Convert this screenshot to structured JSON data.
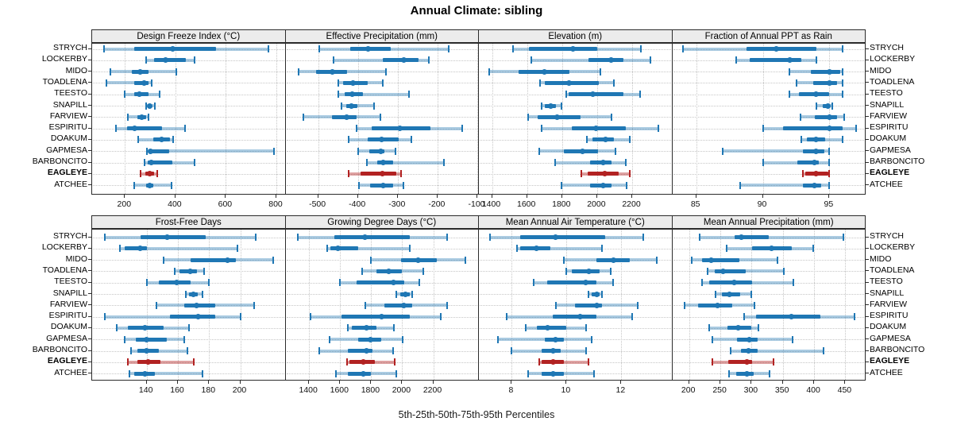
{
  "title": "Annual Climate: sibling",
  "caption": "5th-25th-50th-75th-95th Percentiles",
  "colors": {
    "series_blue": "#1f77b4",
    "series_blue_light": "rgba(31,119,180,0.38)",
    "highlight_red": "#b22222",
    "highlight_red_light": "rgba(178,34,34,0.42)",
    "header_bg": "#ececec",
    "gridline": "#c6c6c6",
    "border": "#2b2b2b"
  },
  "sites": [
    {
      "name": "STRYCH",
      "highlight": false
    },
    {
      "name": "LOCKERBY",
      "highlight": false
    },
    {
      "name": "MIDO",
      "highlight": false
    },
    {
      "name": "TOADLENA",
      "highlight": false
    },
    {
      "name": "TEESTO",
      "highlight": false
    },
    {
      "name": "SNAPILL",
      "highlight": false
    },
    {
      "name": "FARVIEW",
      "highlight": false
    },
    {
      "name": "ESPIRITU",
      "highlight": false
    },
    {
      "name": "DOAKUM",
      "highlight": false
    },
    {
      "name": "GAPMESA",
      "highlight": false
    },
    {
      "name": "BARBONCITO",
      "highlight": false
    },
    {
      "name": "EAGLEYE",
      "highlight": true
    },
    {
      "name": "ATCHEE",
      "highlight": false
    }
  ],
  "chart_data": {
    "type": "scatter",
    "subtype": "percentile-interval-dotplot",
    "grid": "dotted",
    "percentile_levels": [
      5,
      25,
      50,
      75,
      95
    ],
    "panels": [
      {
        "title": "Design Freeze Index (°C)",
        "range": [
          70,
          830
        ],
        "ticks": [
          200,
          400,
          600,
          800
        ],
        "values": [
          [
            117,
            238,
            390,
            560,
            770
          ],
          [
            285,
            315,
            362,
            442,
            475
          ],
          [
            143,
            228,
            259,
            294,
            403
          ],
          [
            127,
            238,
            275,
            295,
            305
          ],
          [
            200,
            238,
            256,
            294,
            338
          ],
          [
            285,
            292,
            299,
            306,
            317
          ],
          [
            210,
            249,
            267,
            283,
            294
          ],
          [
            164,
            207,
            238,
            348,
            437
          ],
          [
            252,
            312,
            346,
            379,
            390
          ],
          [
            288,
            293,
            301,
            374,
            789
          ],
          [
            278,
            291,
            304,
            388,
            475
          ],
          [
            263,
            280,
            299,
            315,
            327
          ],
          [
            238,
            285,
            299,
            312,
            384
          ]
        ]
      },
      {
        "title": "Effective Precipitation (mm)",
        "range": [
          -582,
          -100
        ],
        "ticks": [
          -500,
          -400,
          -300,
          -200,
          -100
        ],
        "values": [
          [
            -497,
            -420,
            -375,
            -318,
            -171
          ],
          [
            -462,
            -337,
            -285,
            -247,
            -221
          ],
          [
            -549,
            -506,
            -465,
            -427,
            -330
          ],
          [
            -450,
            -438,
            -412,
            -375,
            -337
          ],
          [
            -449,
            -434,
            -415,
            -388,
            -272
          ],
          [
            -442,
            -429,
            -417,
            -401,
            -359
          ],
          [
            -538,
            -465,
            -429,
            -404,
            -343
          ],
          [
            -404,
            -366,
            -295,
            -218,
            -138
          ],
          [
            -423,
            -375,
            -340,
            -298,
            -266
          ],
          [
            -400,
            -372,
            -342,
            -333,
            -305
          ],
          [
            -378,
            -352,
            -337,
            -311,
            -183
          ],
          [
            -424,
            -394,
            -338,
            -303,
            -292
          ],
          [
            -397,
            -369,
            -337,
            -311,
            -285
          ]
        ]
      },
      {
        "title": "Elevation (m)",
        "range": [
          1325,
          2420
        ],
        "ticks": [
          1400,
          1600,
          1800,
          2000,
          2200
        ],
        "values": [
          [
            1520,
            1610,
            1860,
            2000,
            2250
          ],
          [
            1625,
            1950,
            2080,
            2150,
            2305
          ],
          [
            1385,
            1550,
            1700,
            1840,
            2020
          ],
          [
            1675,
            1700,
            1840,
            2010,
            2095
          ],
          [
            1825,
            1835,
            1975,
            2150,
            2245
          ],
          [
            1685,
            1700,
            1735,
            1765,
            1795
          ],
          [
            1605,
            1660,
            1772,
            1905,
            2080
          ],
          [
            1685,
            1855,
            1995,
            2165,
            2350
          ],
          [
            1940,
            1975,
            2050,
            2095,
            2185
          ],
          [
            1670,
            1810,
            1915,
            2005,
            2105
          ],
          [
            1760,
            1960,
            2035,
            2080,
            2165
          ],
          [
            1910,
            1945,
            2045,
            2125,
            2185
          ],
          [
            1795,
            1960,
            2035,
            2080,
            2170
          ]
        ]
      },
      {
        "title": "Fraction of Annual PPT as Rain",
        "range": [
          83.2,
          97.6
        ],
        "ticks": [
          85,
          90,
          95
        ],
        "values": [
          [
            84,
            88.8,
            91,
            94,
            96
          ],
          [
            88,
            89,
            92,
            92.9,
            94
          ],
          [
            92,
            93.6,
            95,
            95.8,
            96
          ],
          [
            92.5,
            93.8,
            95,
            95.6,
            96
          ],
          [
            92,
            92.7,
            94,
            95,
            96
          ],
          [
            94,
            94.5,
            94.9,
            95,
            95.2
          ],
          [
            92.8,
            93.9,
            95,
            95.6,
            96.1
          ],
          [
            90,
            91.5,
            95,
            96,
            97
          ],
          [
            92.9,
            93.3,
            94,
            94.7,
            96
          ],
          [
            87,
            93,
            94,
            94.6,
            95
          ],
          [
            90,
            92.6,
            93.9,
            94.2,
            95
          ],
          [
            93,
            93.2,
            94,
            94.9,
            95
          ],
          [
            88.3,
            93,
            93.9,
            94.4,
            95
          ]
        ]
      },
      {
        "title": "Frost-Free Days",
        "range": [
          105,
          228
        ],
        "ticks": [
          140,
          160,
          180,
          200
        ],
        "values": [
          [
            113,
            136,
            153,
            178,
            210
          ],
          [
            123,
            126,
            136,
            140,
            198
          ],
          [
            151,
            168,
            192,
            197,
            221
          ],
          [
            158,
            161,
            168,
            172,
            177
          ],
          [
            140,
            148,
            159,
            168,
            180
          ],
          [
            165,
            167,
            170,
            173,
            176
          ],
          [
            146,
            164,
            172,
            184,
            209
          ],
          [
            113,
            155,
            173,
            184,
            200
          ],
          [
            121,
            128,
            139,
            151,
            167
          ],
          [
            126,
            133,
            140,
            153,
            164
          ],
          [
            130,
            134,
            140,
            148,
            166
          ],
          [
            128,
            134,
            141,
            149,
            170
          ],
          [
            129,
            132,
            139,
            145,
            176
          ]
        ]
      },
      {
        "title": "Growing Degree Days (°C)",
        "range": [
          1248,
          2484
        ],
        "ticks": [
          1400,
          1600,
          1800,
          2000,
          2200
        ],
        "values": [
          [
            1325,
            1560,
            1760,
            2050,
            2290
          ],
          [
            1515,
            1535,
            1585,
            1715,
            2050
          ],
          [
            1800,
            1990,
            2105,
            2225,
            2405
          ],
          [
            1740,
            1835,
            1915,
            2000,
            2135
          ],
          [
            1597,
            1708,
            1945,
            2015,
            2110
          ],
          [
            1960,
            1985,
            2020,
            2050,
            2065
          ],
          [
            1760,
            1885,
            2010,
            2065,
            2290
          ],
          [
            1410,
            1610,
            1865,
            2050,
            2250
          ],
          [
            1650,
            1675,
            1770,
            1835,
            1945
          ],
          [
            1530,
            1715,
            1795,
            1865,
            2005
          ],
          [
            1465,
            1650,
            1770,
            1810,
            1940
          ],
          [
            1645,
            1660,
            1750,
            1825,
            1950
          ],
          [
            1575,
            1650,
            1750,
            1800,
            1960
          ]
        ]
      },
      {
        "title": "Mean Annual Air Temperature (°C)",
        "range": [
          6.8,
          13.8
        ],
        "ticks": [
          8,
          10,
          12
        ],
        "values": [
          [
            7.2,
            8.3,
            9.6,
            11.4,
            12.8
          ],
          [
            8.2,
            8.3,
            8.9,
            9.4,
            11.3
          ],
          [
            9.9,
            11.1,
            11.7,
            12.3,
            13.3
          ],
          [
            10.0,
            10.2,
            10.8,
            11.2,
            11.6
          ],
          [
            8.8,
            9.3,
            10.7,
            11.1,
            11.7
          ],
          [
            10.8,
            10.9,
            11.1,
            11.2,
            11.3
          ],
          [
            9.6,
            10.3,
            11.1,
            11.3,
            12.6
          ],
          [
            7.8,
            9.5,
            10.5,
            11.1,
            12.4
          ],
          [
            8.5,
            8.9,
            9.3,
            10.0,
            10.7
          ],
          [
            7.5,
            9.2,
            9.6,
            9.9,
            10.9
          ],
          [
            8.0,
            9.1,
            9.5,
            9.8,
            10.7
          ],
          [
            9.0,
            9.1,
            9.5,
            9.9,
            10.8
          ],
          [
            8.6,
            9.1,
            9.5,
            9.9,
            11.0
          ]
        ]
      },
      {
        "title": "Mean Annual Precipitation (mm)",
        "range": [
          173,
          480
        ],
        "ticks": [
          200,
          250,
          300,
          350,
          400,
          450
        ],
        "values": [
          [
            217,
            273,
            283,
            327,
            447
          ],
          [
            260,
            301,
            332,
            365,
            399
          ],
          [
            204,
            220,
            235,
            280,
            342
          ],
          [
            229,
            241,
            254,
            290,
            351
          ],
          [
            221,
            232,
            272,
            301,
            367
          ],
          [
            242,
            252,
            264,
            282,
            300
          ],
          [
            193,
            214,
            246,
            269,
            305
          ],
          [
            288,
            307,
            363,
            410,
            465
          ],
          [
            232,
            261,
            279,
            300,
            311
          ],
          [
            237,
            276,
            296,
            310,
            365
          ],
          [
            266,
            283,
            295,
            310,
            415
          ],
          [
            237,
            262,
            292,
            301,
            335
          ],
          [
            264,
            275,
            293,
            303,
            329
          ]
        ]
      }
    ]
  }
}
